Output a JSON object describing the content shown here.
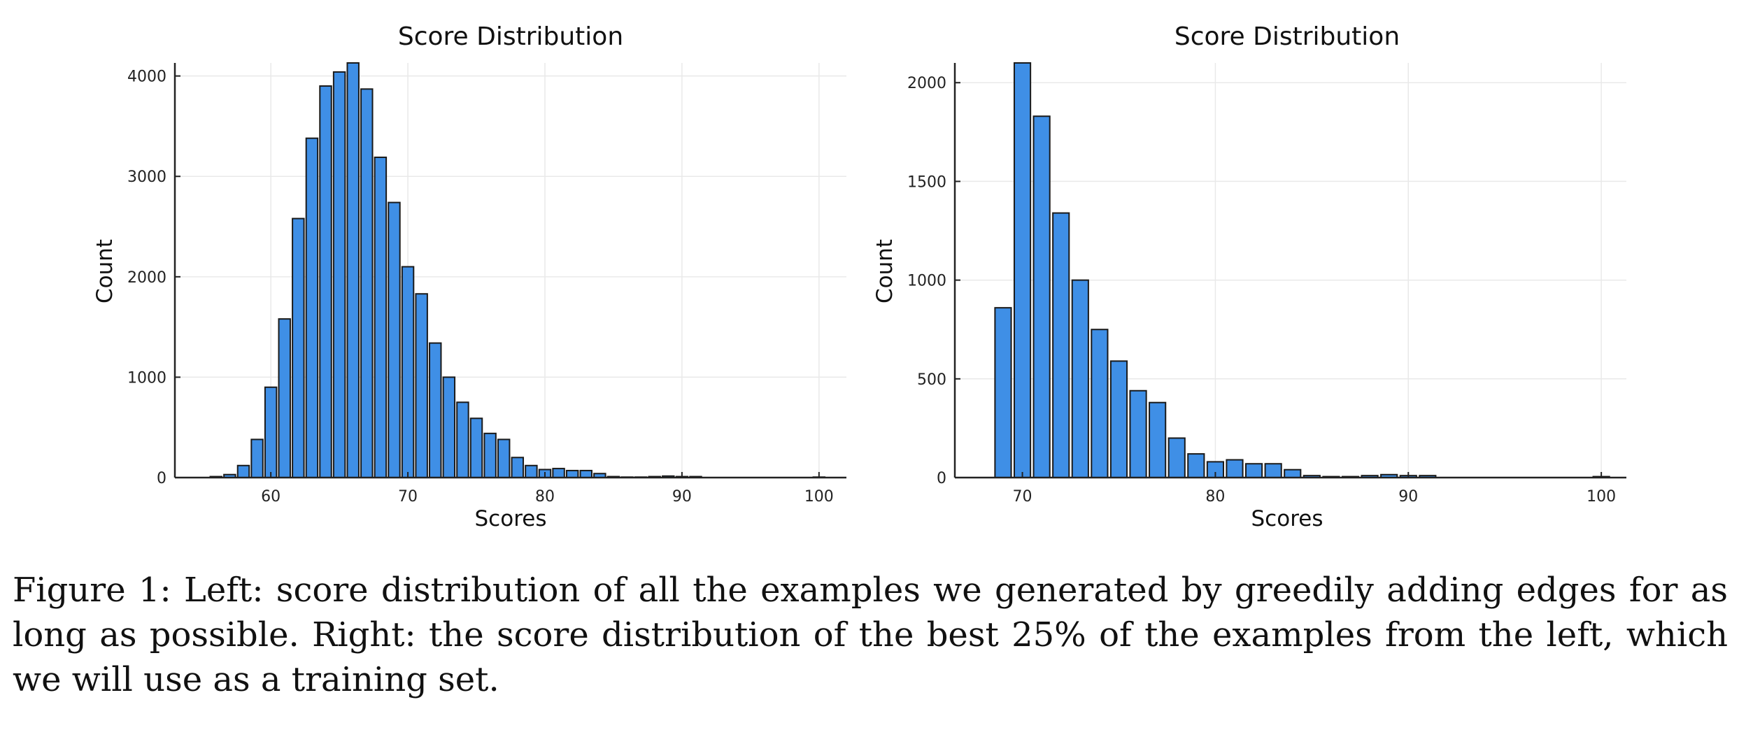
{
  "chart_data": [
    {
      "type": "bar",
      "title": "Score Distribution",
      "xlabel": "Scores",
      "ylabel": "Count",
      "xlim": [
        53,
        102
      ],
      "ylim": [
        0,
        4130
      ],
      "xticks": [
        60,
        70,
        80,
        90,
        100
      ],
      "yticks": [
        0,
        1000,
        2000,
        3000,
        4000
      ],
      "grid": true,
      "bar_color": "#3f8fe6",
      "x": [
        56,
        57,
        58,
        59,
        60,
        61,
        62,
        63,
        64,
        65,
        66,
        67,
        68,
        69,
        70,
        71,
        72,
        73,
        74,
        75,
        76,
        77,
        78,
        79,
        80,
        81,
        82,
        83,
        84,
        85,
        86,
        87,
        88,
        89,
        90,
        91,
        100
      ],
      "values": [
        10,
        30,
        120,
        380,
        900,
        1580,
        2580,
        3380,
        3900,
        4040,
        4130,
        3870,
        3190,
        2740,
        2100,
        1830,
        1340,
        1000,
        750,
        590,
        440,
        380,
        200,
        120,
        80,
        90,
        70,
        70,
        40,
        10,
        5,
        5,
        10,
        15,
        10,
        10,
        5
      ]
    },
    {
      "type": "bar",
      "title": "Score Distribution",
      "xlabel": "Scores",
      "ylabel": "Count",
      "xlim": [
        66.5,
        101.3
      ],
      "ylim": [
        0,
        2100
      ],
      "xticks": [
        70,
        80,
        90,
        100
      ],
      "yticks": [
        0,
        500,
        1000,
        1500,
        2000
      ],
      "grid": true,
      "bar_color": "#3f8fe6",
      "x": [
        69,
        70,
        71,
        72,
        73,
        74,
        75,
        76,
        77,
        78,
        79,
        80,
        81,
        82,
        83,
        84,
        85,
        86,
        87,
        88,
        89,
        90,
        91,
        100
      ],
      "values": [
        860,
        2100,
        1830,
        1340,
        1000,
        750,
        590,
        440,
        380,
        200,
        120,
        80,
        90,
        70,
        70,
        40,
        10,
        5,
        5,
        10,
        15,
        10,
        10,
        5
      ]
    }
  ],
  "caption": "Figure 1: Left: score distribution of all the examples we generated by greedily adding edges for as long as possible. Right: the score distribution of the best 25% of the examples from the left, which we will use as a training set."
}
